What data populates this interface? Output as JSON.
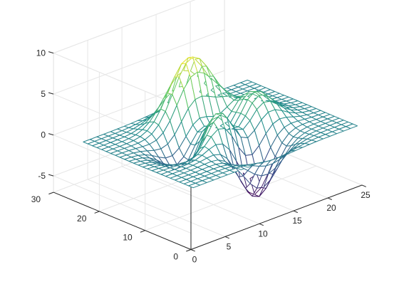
{
  "chart_data": {
    "type": "mesh",
    "function": "peaks",
    "grid_size": 25,
    "x_ticks": [
      0,
      5,
      10,
      15,
      20,
      25
    ],
    "y_ticks": [
      0,
      10,
      20,
      30
    ],
    "z_ticks": [
      -5,
      0,
      5,
      10
    ],
    "xlim": [
      0,
      25
    ],
    "ylim": [
      0,
      30
    ],
    "zlim": [
      -7,
      10
    ],
    "color_range": [
      -6.55,
      8.1
    ],
    "grid": true,
    "colormap": [
      "#440154",
      "#3b528b",
      "#21908c",
      "#5dc963",
      "#fde725"
    ],
    "axis_label_color": "#262626",
    "grid_color": "#e6e6e6"
  }
}
